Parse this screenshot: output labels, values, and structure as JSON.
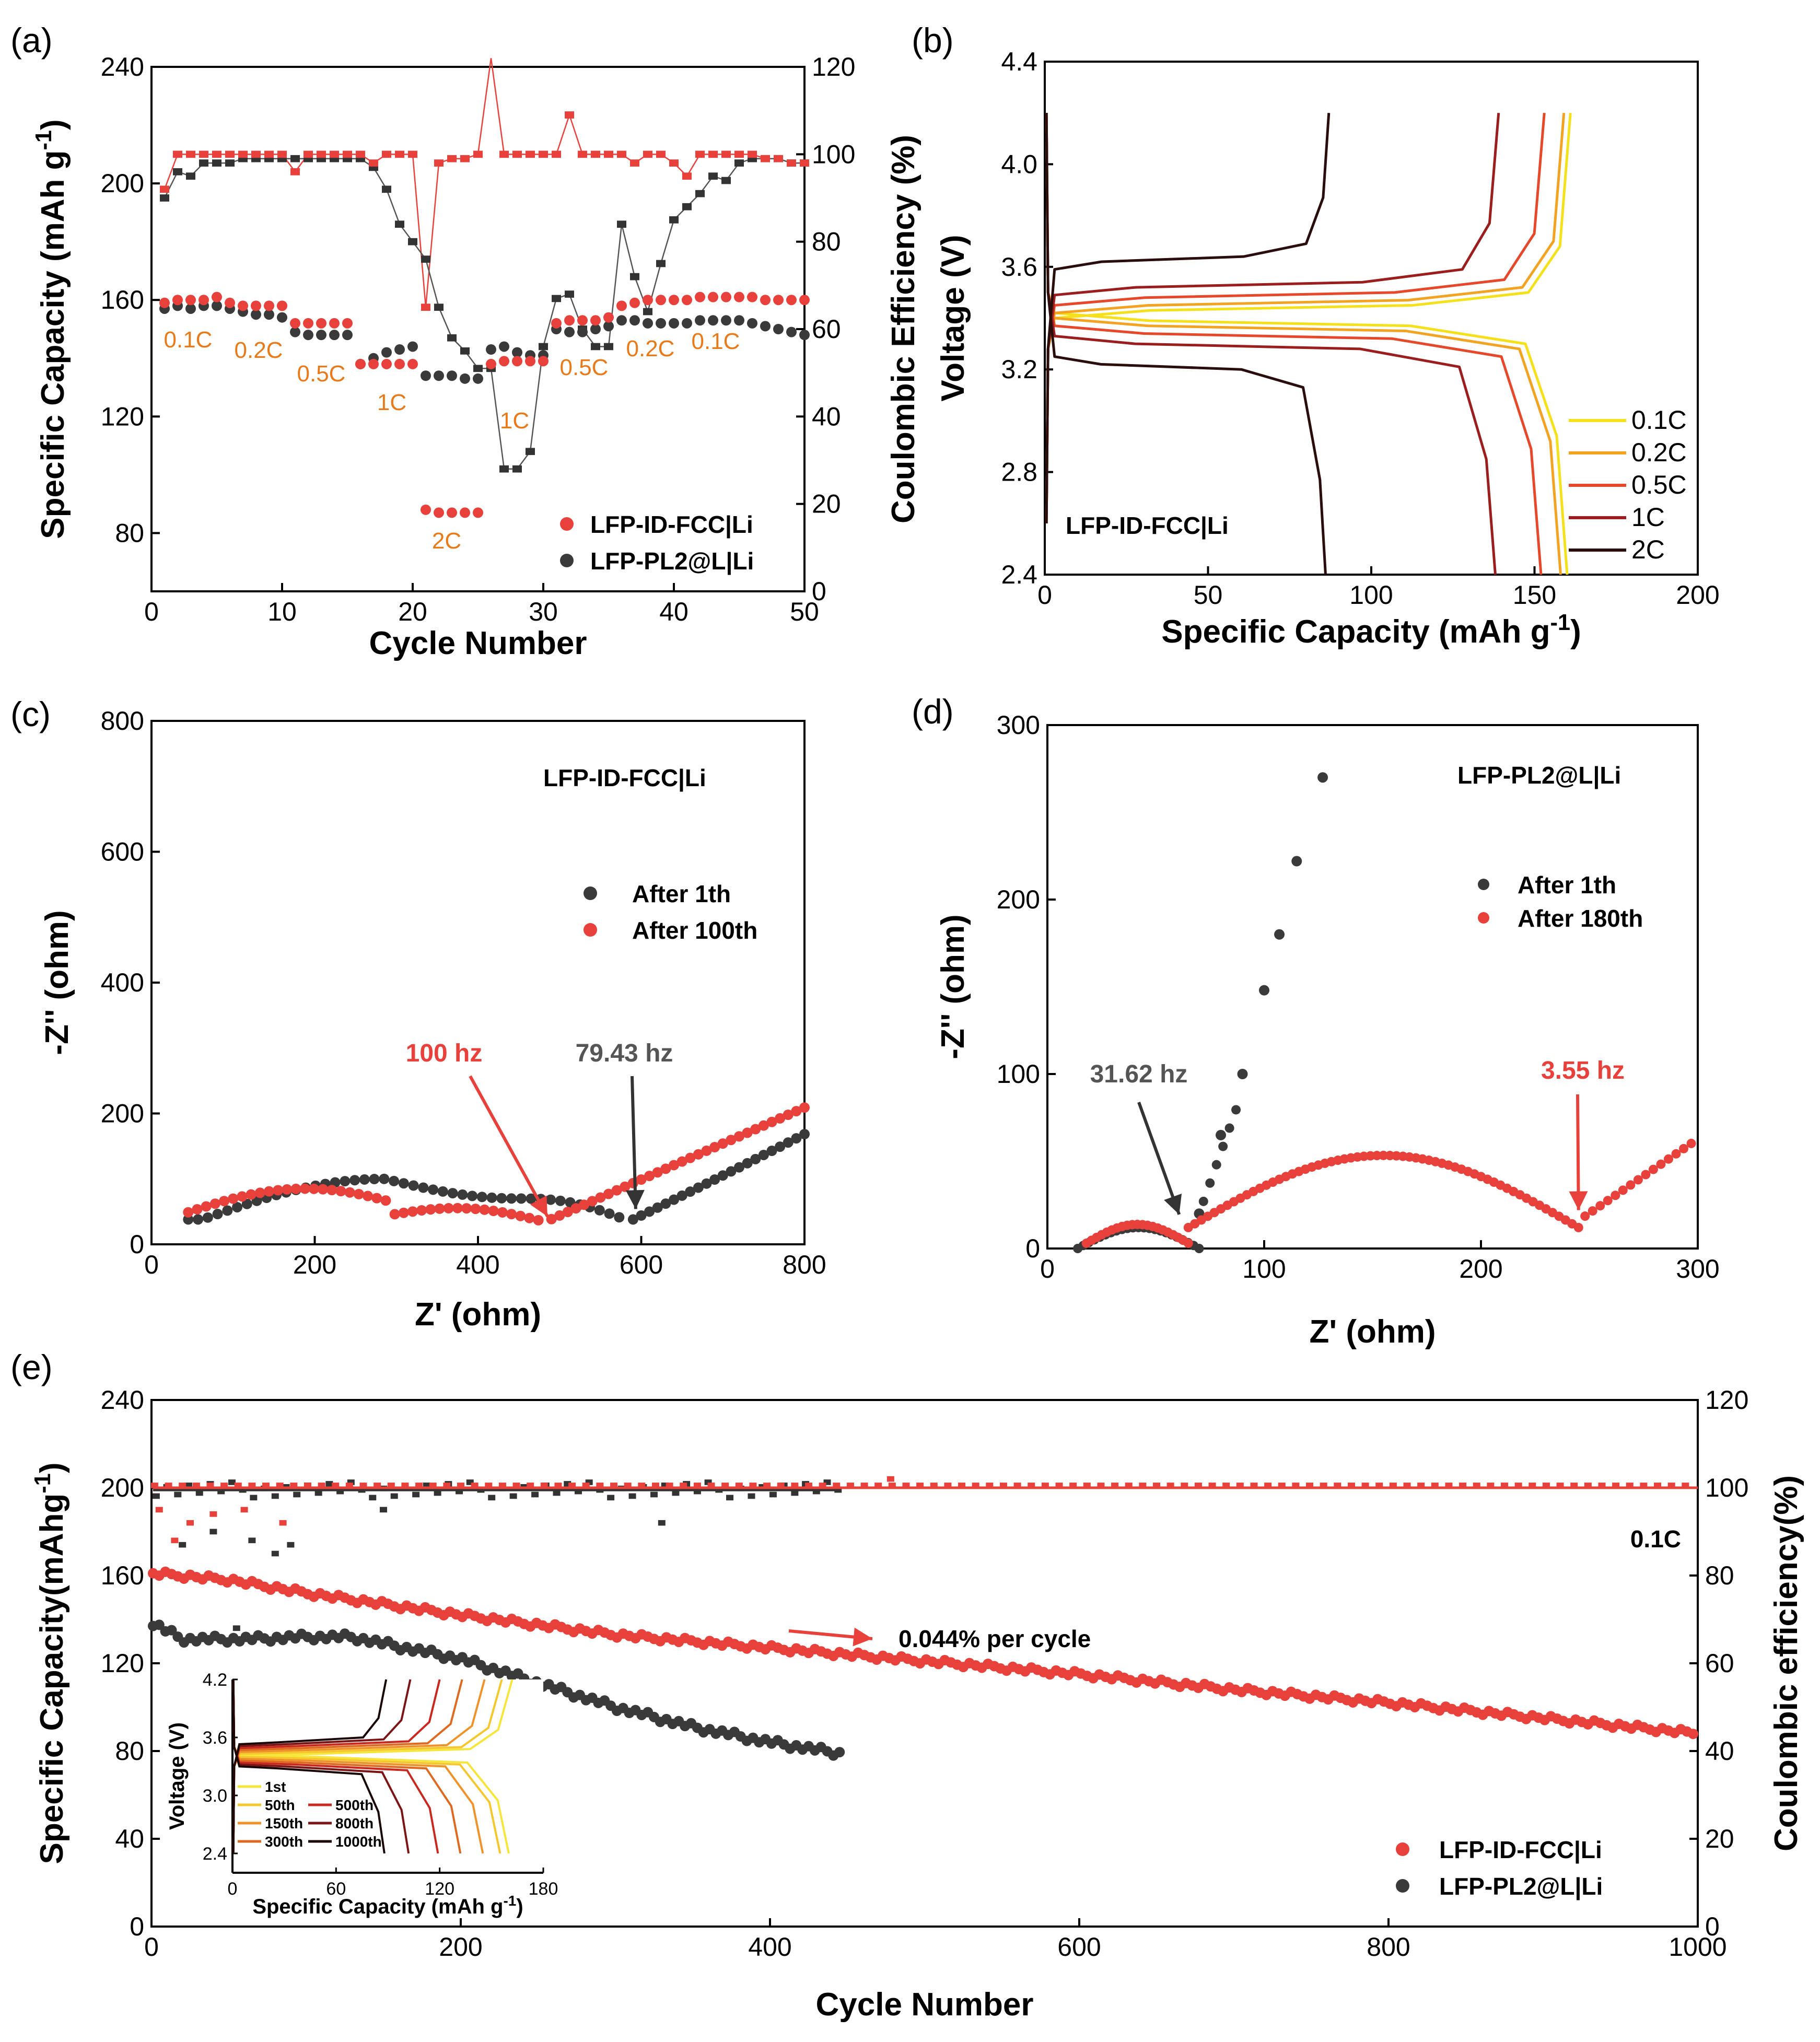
{
  "colors": {
    "red": "#E8403A",
    "black": "#3A3A3A",
    "orange": "#E87A1A",
    "rate": {
      "0.1C": "#F4E11C",
      "0.2C": "#F2A321",
      "0.5C": "#E5482A",
      "1C": "#9B1E1E",
      "2C": "#2A0D0D"
    }
  },
  "chart_data": [
    {
      "panel": "(a)",
      "type": "scatter",
      "xlabel": "Cycle Number",
      "ylabel": "Specific Capacity (mAh g-1)",
      "ylabel_main": "Specific Capacity (mAh g",
      "ylabel_sup": "-1",
      "ylabel_end": ")",
      "y2label": "Coulombic Efficiency (%)",
      "xlim": [
        0,
        50
      ],
      "ylim": [
        60,
        240
      ],
      "y2lim": [
        0,
        120
      ],
      "xticks": [
        "0",
        "10",
        "20",
        "30",
        "40",
        "50"
      ],
      "yticks": [
        "80",
        "120",
        "160",
        "200",
        "240"
      ],
      "y2ticks": [
        "0",
        "20",
        "40",
        "60",
        "80",
        "100",
        "120"
      ],
      "rate_labels": [
        "0.1C",
        "0.2C",
        "0.5C",
        "1C",
        "2C",
        "1C",
        "0.5C",
        "0.2C",
        "0.1C"
      ],
      "legend": [
        "LFP-ID-FCC|Li",
        "LFP-PL2@L|Li"
      ],
      "series": [
        {
          "name": "LFP-ID-FCC|Li capacity",
          "x": [
            1,
            2,
            3,
            4,
            5,
            6,
            7,
            8,
            9,
            10,
            11,
            12,
            13,
            14,
            15,
            16,
            17,
            18,
            19,
            20,
            21,
            22,
            23,
            24,
            25,
            26,
            27,
            28,
            29,
            30,
            31,
            32,
            33,
            34,
            35,
            36,
            37,
            38,
            39,
            40,
            41,
            42,
            43,
            44,
            45,
            46,
            47,
            48,
            49,
            50
          ],
          "y": [
            159,
            160,
            160,
            160,
            161,
            159,
            158,
            158,
            158,
            158,
            152,
            152,
            152,
            152,
            152,
            138,
            138,
            138,
            138,
            138,
            88,
            87,
            87,
            87,
            87,
            138,
            139,
            139,
            139,
            139,
            152,
            153,
            153,
            153,
            154,
            158,
            159,
            160,
            160,
            160,
            160,
            161,
            161,
            161,
            161,
            161,
            160,
            160,
            160,
            160
          ]
        },
        {
          "name": "LFP-PL2@L|Li capacity",
          "x": [
            1,
            2,
            3,
            4,
            5,
            6,
            7,
            8,
            9,
            10,
            11,
            12,
            13,
            14,
            15,
            16,
            17,
            18,
            19,
            20,
            21,
            22,
            23,
            24,
            25,
            26,
            27,
            28,
            29,
            30,
            31,
            32,
            33,
            34,
            35,
            36,
            37,
            38,
            39,
            40,
            41,
            42,
            43,
            44,
            45,
            46,
            47,
            48,
            49,
            50
          ],
          "y": [
            157,
            158,
            157,
            158,
            158,
            157,
            156,
            155,
            155,
            154,
            149,
            148,
            148,
            148,
            148,
            138,
            140,
            142,
            143,
            144,
            134,
            134,
            134,
            133,
            133,
            143,
            144,
            142,
            141,
            141,
            150,
            149,
            149,
            150,
            151,
            153,
            153,
            152,
            152,
            152,
            152,
            153,
            153,
            153,
            153,
            152,
            151,
            150,
            149,
            148
          ]
        },
        {
          "name": "LFP-ID-FCC|Li CE",
          "x": [
            1,
            2,
            3,
            4,
            5,
            6,
            7,
            8,
            9,
            10,
            11,
            12,
            13,
            14,
            15,
            16,
            17,
            18,
            19,
            20,
            21,
            22,
            23,
            24,
            25,
            26,
            27,
            28,
            29,
            30,
            31,
            32,
            33,
            34,
            35,
            36,
            37,
            38,
            39,
            40,
            41,
            42,
            43,
            44,
            45,
            46,
            47,
            48,
            49,
            50
          ],
          "y": [
            92,
            100,
            100,
            100,
            100,
            100,
            100,
            100,
            100,
            100,
            96,
            100,
            100,
            100,
            100,
            100,
            98,
            100,
            100,
            100,
            65,
            98,
            99,
            99,
            100,
            122,
            100,
            100,
            100,
            100,
            100,
            109,
            100,
            100,
            100,
            100,
            98,
            100,
            100,
            98,
            95,
            100,
            100,
            100,
            100,
            100,
            99,
            99,
            98,
            98
          ]
        },
        {
          "name": "LFP-PL2@L|Li CE",
          "x": [
            1,
            2,
            3,
            4,
            5,
            6,
            7,
            8,
            9,
            10,
            11,
            12,
            13,
            14,
            15,
            16,
            17,
            18,
            19,
            20,
            21,
            22,
            23,
            24,
            25,
            26,
            27,
            28,
            29,
            30,
            31,
            32,
            33,
            34,
            35,
            36,
            37,
            38,
            39,
            40,
            41,
            42,
            43,
            44,
            45,
            46,
            47,
            48,
            49,
            50
          ],
          "y": [
            90,
            96,
            95,
            98,
            98,
            98,
            99,
            99,
            99,
            99,
            99,
            99,
            99,
            99,
            99,
            99,
            97,
            92,
            84,
            80,
            76,
            65,
            58,
            55,
            51,
            51,
            28,
            28,
            32,
            56,
            67,
            68,
            60,
            56,
            56,
            84,
            72,
            64,
            75,
            85,
            88,
            91,
            95,
            94,
            98,
            99,
            99,
            99,
            98,
            98
          ]
        }
      ]
    },
    {
      "panel": "(b)",
      "type": "line",
      "xlabel": "Specific Capacity (mAh g-1)",
      "xlabel_main": "Specific Capacity (mAh g",
      "xlabel_sup": "-1",
      "xlabel_end": ")",
      "ylabel": "Voltage (V)",
      "xlim": [
        0,
        200
      ],
      "ylim": [
        2.4,
        4.4
      ],
      "xticks": [
        "0",
        "50",
        "100",
        "150",
        "200"
      ],
      "yticks": [
        "2.4",
        "2.8",
        "3.2",
        "3.6",
        "4.0",
        "4.4"
      ],
      "annotation": "LFP-ID-FCC|Li",
      "legend": [
        "0.1C",
        "0.2C",
        "0.5C",
        "1C",
        "2C"
      ],
      "series": [
        {
          "name": "0.1C",
          "charge_capacity": 161,
          "discharge_capacity": 160,
          "charge_plateau": 3.43,
          "discharge_plateau": 3.39
        },
        {
          "name": "0.2C",
          "charge_capacity": 159,
          "discharge_capacity": 158,
          "charge_plateau": 3.45,
          "discharge_plateau": 3.37
        },
        {
          "name": "0.5C",
          "charge_capacity": 153,
          "discharge_capacity": 152,
          "charge_plateau": 3.48,
          "discharge_plateau": 3.34
        },
        {
          "name": "1C",
          "charge_capacity": 139,
          "discharge_capacity": 138,
          "charge_plateau": 3.52,
          "discharge_plateau": 3.3
        },
        {
          "name": "2C",
          "charge_capacity": 87,
          "discharge_capacity": 86,
          "charge_plateau": 3.62,
          "discharge_plateau": 3.22
        }
      ]
    },
    {
      "panel": "(c)",
      "type": "scatter",
      "xlabel": "Z' (ohm)",
      "ylabel": "-Z'' (ohm)",
      "xlim": [
        0,
        800
      ],
      "ylim": [
        0,
        800
      ],
      "xticks": [
        "0",
        "200",
        "400",
        "600",
        "800"
      ],
      "yticks": [
        "0",
        "200",
        "400",
        "600",
        "800"
      ],
      "annotation": "LFP-ID-FCC|Li",
      "legend": [
        "After 1th",
        "After 100th"
      ],
      "freq_red": "100 hz",
      "freq_black": "79.43 hz",
      "freq_red_point": [
        480,
        33
      ],
      "freq_black_point": [
        590,
        38
      ],
      "series": [
        {
          "name": "After 1th",
          "arcs": [
            [
              45,
              30,
              580,
              95
            ],
            [
              580,
              38,
              800,
              165
            ]
          ]
        },
        {
          "name": "After 100th",
          "arcs": [
            [
              45,
              40,
              480,
              85
            ],
            [
              480,
              33,
              800,
              210
            ]
          ]
        }
      ]
    },
    {
      "panel": "(d)",
      "type": "scatter",
      "xlabel": "Z' (ohm)",
      "ylabel": "-Z'' (ohm)",
      "xlim": [
        0,
        300
      ],
      "ylim": [
        0,
        300
      ],
      "xticks": [
        "0",
        "100",
        "200",
        "300"
      ],
      "yticks": [
        "0",
        "100",
        "200",
        "300"
      ],
      "annotation": "LFP-PL2@L|Li",
      "legend": [
        "After 1th",
        "After 180th"
      ],
      "freq_black": "31.62 hz",
      "freq_red": "3.55 hz",
      "freq_black_point": [
        62,
        12
      ],
      "freq_red_point": [
        245,
        16
      ],
      "series": [
        {
          "name": "After 1th",
          "semicircle": [
            14,
            70,
            12
          ],
          "tail": [
            [
              70,
              20
            ],
            [
              80,
              65
            ],
            [
              90,
              100
            ],
            [
              100,
              148
            ],
            [
              107,
              180
            ],
            [
              115,
              222
            ],
            [
              127,
              270
            ]
          ]
        },
        {
          "name": "After 180th",
          "semicircle": [
            18,
            65,
            12
          ],
          "arc2": [
            65,
            245,
            53
          ],
          "tail_end": [
            300,
            62
          ]
        }
      ]
    },
    {
      "panel": "(e)",
      "type": "scatter",
      "xlabel": "Cycle Number",
      "ylabel": "Specific Capacity(mAhg-1)",
      "ylabel_main": "Specific Capacity(mAhg",
      "ylabel_sup": "-1",
      "ylabel_end": ")",
      "y2label": "Coulombic efficiency(%)",
      "xlim": [
        0,
        1000
      ],
      "ylim": [
        0,
        240
      ],
      "y2lim": [
        0,
        120
      ],
      "xticks": [
        "0",
        "200",
        "400",
        "600",
        "800",
        "1000"
      ],
      "yticks": [
        "0",
        "40",
        "80",
        "120",
        "160",
        "200",
        "240"
      ],
      "y2ticks": [
        "0",
        "20",
        "40",
        "60",
        "80",
        "100",
        "120"
      ],
      "rate": "0.1C",
      "decay_text": "0.044% per cycle",
      "legend": [
        "LFP-ID-FCC|Li",
        "LFP-PL2@L|Li"
      ],
      "series": [
        {
          "name": "LFP-ID-FCC|Li capacity",
          "x": [
            1,
            50,
            100,
            200,
            300,
            400,
            500,
            600,
            700,
            800,
            900,
            1000
          ],
          "y": [
            161,
            158,
            152,
            142,
            133,
            127,
            121,
            115,
            108,
            102,
            95,
            88
          ]
        },
        {
          "name": "LFP-PL2@L|Li capacity",
          "x": [
            1,
            20,
            60,
            100,
            130,
            150,
            200,
            250,
            300,
            350,
            400,
            445
          ],
          "y": [
            138,
            131,
            131,
            132,
            132,
            129,
            122,
            111,
            100,
            91,
            84,
            79
          ]
        },
        {
          "name": "LFP-ID-FCC|Li CE",
          "x": [
            1,
            1000
          ],
          "y": [
            100,
            100
          ]
        },
        {
          "name": "LFP-PL2@L|Li CE",
          "x": [
            1,
            445
          ],
          "y": [
            99.5,
            99.5
          ]
        }
      ],
      "inset": {
        "xlabel": "Specific Capacity (mAh g-1)",
        "xlabel_main": "Specific Capacity (mAh g",
        "xlabel_sup": "-1",
        "xlabel_end": ")",
        "ylabel": "Voltage (V)",
        "xlim": [
          0,
          180
        ],
        "ylim": [
          2.2,
          4.2
        ],
        "xticks": [
          "0",
          "60",
          "120",
          "180"
        ],
        "yticks": [
          "2.4",
          "3.0",
          "3.6",
          "4.2"
        ],
        "legend": [
          "1st",
          "50th",
          "150th",
          "300th",
          "500th",
          "800th",
          "1000th"
        ],
        "series": [
          {
            "name": "1st",
            "charge_capacity": 162,
            "discharge_capacity": 160
          },
          {
            "name": "50th",
            "charge_capacity": 156,
            "discharge_capacity": 155
          },
          {
            "name": "150th",
            "charge_capacity": 146,
            "discharge_capacity": 145
          },
          {
            "name": "300th",
            "charge_capacity": 133,
            "discharge_capacity": 132
          },
          {
            "name": "500th",
            "charge_capacity": 120,
            "discharge_capacity": 119
          },
          {
            "name": "800th",
            "charge_capacity": 103,
            "discharge_capacity": 102
          },
          {
            "name": "1000th",
            "charge_capacity": 89,
            "discharge_capacity": 88
          }
        ]
      }
    }
  ]
}
